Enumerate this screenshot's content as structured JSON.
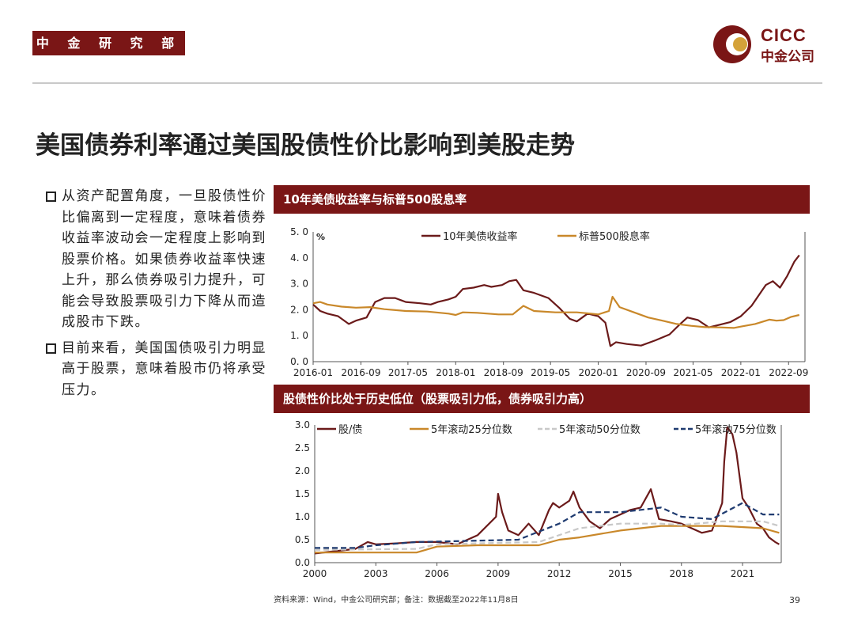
{
  "header": {
    "department": "中 金 研 究 部",
    "logo_en": "CICC",
    "logo_cn": "中金公司"
  },
  "title": "美国债券利率通过美国股债性价比影响到美股走势",
  "bullets": [
    {
      "text": "从资产配置角度，一旦股债性价比偏离到一定程度，意味着债券收益率波动会一定程度上影响到股票价格。如果债券收益率快速上升，那么债券吸引力提升，可能会导致股票吸引力下降从而造成股市下跌。"
    },
    {
      "text": "目前来看，美国国债吸引力明显高于股票，意味着股市仍将承受压力。"
    }
  ],
  "footer": {
    "source": "资料来源：Wind，中金公司研究部；备注：数据截至2022年11月8日",
    "page": "39"
  },
  "colors": {
    "brand": "#7a1616",
    "line_dark": "#6b1a1a",
    "line_gold": "#c9882a",
    "line_gray": "#c8c8c8",
    "line_navy": "#1f3b70"
  },
  "chart_data": [
    {
      "type": "line",
      "title": "10年美债收益率与标普500股息率",
      "ylabel": "%",
      "ylim": [
        0,
        5
      ],
      "yticks": [
        "0.0",
        "1.0",
        "2.0",
        "3.0",
        "4.0",
        "5.0"
      ],
      "xlim": [
        2016.0,
        2022.9
      ],
      "xticks": [
        {
          "x": 2016.0,
          "label": "2016-01"
        },
        {
          "x": 2016.67,
          "label": "2016-09"
        },
        {
          "x": 2017.33,
          "label": "2017-05"
        },
        {
          "x": 2018.0,
          "label": "2018-01"
        },
        {
          "x": 2018.67,
          "label": "2018-09"
        },
        {
          "x": 2019.33,
          "label": "2019-05"
        },
        {
          "x": 2020.0,
          "label": "2020-01"
        },
        {
          "x": 2020.67,
          "label": "2020-09"
        },
        {
          "x": 2021.33,
          "label": "2021-05"
        },
        {
          "x": 2022.0,
          "label": "2022-01"
        },
        {
          "x": 2022.67,
          "label": "2022-09"
        }
      ],
      "legend_position": "top",
      "series": [
        {
          "name": "10年美债收益率",
          "color": "#6b1a1a",
          "points": [
            [
              2016.0,
              2.2
            ],
            [
              2016.1,
              1.95
            ],
            [
              2016.2,
              1.85
            ],
            [
              2016.35,
              1.75
            ],
            [
              2016.5,
              1.45
            ],
            [
              2016.6,
              1.58
            ],
            [
              2016.75,
              1.7
            ],
            [
              2016.87,
              2.3
            ],
            [
              2017.0,
              2.45
            ],
            [
              2017.15,
              2.45
            ],
            [
              2017.3,
              2.3
            ],
            [
              2017.5,
              2.25
            ],
            [
              2017.65,
              2.2
            ],
            [
              2017.75,
              2.3
            ],
            [
              2017.9,
              2.4
            ],
            [
              2018.0,
              2.5
            ],
            [
              2018.1,
              2.8
            ],
            [
              2018.25,
              2.85
            ],
            [
              2018.4,
              2.95
            ],
            [
              2018.5,
              2.88
            ],
            [
              2018.65,
              2.95
            ],
            [
              2018.75,
              3.1
            ],
            [
              2018.85,
              3.15
            ],
            [
              2018.95,
              2.75
            ],
            [
              2019.1,
              2.65
            ],
            [
              2019.3,
              2.45
            ],
            [
              2019.45,
              2.08
            ],
            [
              2019.6,
              1.65
            ],
            [
              2019.7,
              1.55
            ],
            [
              2019.85,
              1.85
            ],
            [
              2020.0,
              1.75
            ],
            [
              2020.1,
              1.5
            ],
            [
              2020.17,
              0.6
            ],
            [
              2020.25,
              0.75
            ],
            [
              2020.4,
              0.68
            ],
            [
              2020.6,
              0.62
            ],
            [
              2020.8,
              0.82
            ],
            [
              2021.0,
              1.05
            ],
            [
              2021.15,
              1.45
            ],
            [
              2021.25,
              1.7
            ],
            [
              2021.4,
              1.6
            ],
            [
              2021.55,
              1.32
            ],
            [
              2021.7,
              1.42
            ],
            [
              2021.85,
              1.52
            ],
            [
              2022.0,
              1.75
            ],
            [
              2022.15,
              2.15
            ],
            [
              2022.25,
              2.55
            ],
            [
              2022.35,
              2.95
            ],
            [
              2022.45,
              3.1
            ],
            [
              2022.55,
              2.85
            ],
            [
              2022.65,
              3.3
            ],
            [
              2022.75,
              3.85
            ],
            [
              2022.82,
              4.1
            ]
          ]
        },
        {
          "name": "标普500股息率",
          "color": "#c9882a",
          "points": [
            [
              2016.0,
              2.25
            ],
            [
              2016.1,
              2.3
            ],
            [
              2016.2,
              2.2
            ],
            [
              2016.4,
              2.12
            ],
            [
              2016.6,
              2.08
            ],
            [
              2016.8,
              2.1
            ],
            [
              2017.0,
              2.02
            ],
            [
              2017.3,
              1.95
            ],
            [
              2017.6,
              1.93
            ],
            [
              2017.9,
              1.85
            ],
            [
              2018.0,
              1.8
            ],
            [
              2018.1,
              1.9
            ],
            [
              2018.3,
              1.88
            ],
            [
              2018.6,
              1.82
            ],
            [
              2018.8,
              1.82
            ],
            [
              2018.95,
              2.15
            ],
            [
              2019.1,
              1.95
            ],
            [
              2019.4,
              1.9
            ],
            [
              2019.7,
              1.9
            ],
            [
              2019.9,
              1.85
            ],
            [
              2020.0,
              1.82
            ],
            [
              2020.15,
              1.95
            ],
            [
              2020.2,
              2.5
            ],
            [
              2020.3,
              2.1
            ],
            [
              2020.5,
              1.9
            ],
            [
              2020.7,
              1.7
            ],
            [
              2020.9,
              1.58
            ],
            [
              2021.1,
              1.45
            ],
            [
              2021.3,
              1.38
            ],
            [
              2021.5,
              1.33
            ],
            [
              2021.7,
              1.32
            ],
            [
              2021.9,
              1.3
            ],
            [
              2022.0,
              1.35
            ],
            [
              2022.2,
              1.45
            ],
            [
              2022.4,
              1.62
            ],
            [
              2022.5,
              1.58
            ],
            [
              2022.6,
              1.6
            ],
            [
              2022.7,
              1.72
            ],
            [
              2022.82,
              1.8
            ]
          ]
        }
      ]
    },
    {
      "type": "line",
      "title": "股债性价比处于历史低位（股票吸引力低，债券吸引力高）",
      "ylim": [
        0,
        3
      ],
      "yticks": [
        "0.0",
        "0.5",
        "1.0",
        "1.5",
        "2.0",
        "2.5",
        "3.0"
      ],
      "xlim": [
        2000,
        2022.9
      ],
      "xticks": [
        {
          "x": 2000,
          "label": "2000"
        },
        {
          "x": 2003,
          "label": "2003"
        },
        {
          "x": 2006,
          "label": "2006"
        },
        {
          "x": 2009,
          "label": "2009"
        },
        {
          "x": 2012,
          "label": "2012"
        },
        {
          "x": 2015,
          "label": "2015"
        },
        {
          "x": 2018,
          "label": "2018"
        },
        {
          "x": 2021,
          "label": "2021"
        }
      ],
      "legend_position": "top",
      "series": [
        {
          "name": "股/债",
          "color": "#6b1a1a",
          "style": "solid",
          "points": [
            [
              2000,
              0.2
            ],
            [
              2001,
              0.25
            ],
            [
              2002,
              0.3
            ],
            [
              2002.6,
              0.45
            ],
            [
              2003,
              0.4
            ],
            [
              2004,
              0.42
            ],
            [
              2005,
              0.45
            ],
            [
              2006,
              0.45
            ],
            [
              2007,
              0.4
            ],
            [
              2008,
              0.6
            ],
            [
              2008.9,
              1.0
            ],
            [
              2009.0,
              1.5
            ],
            [
              2009.2,
              1.1
            ],
            [
              2009.5,
              0.7
            ],
            [
              2010,
              0.6
            ],
            [
              2010.5,
              0.85
            ],
            [
              2011,
              0.6
            ],
            [
              2011.5,
              1.15
            ],
            [
              2011.7,
              1.3
            ],
            [
              2012,
              1.2
            ],
            [
              2012.5,
              1.35
            ],
            [
              2012.7,
              1.55
            ],
            [
              2013,
              1.2
            ],
            [
              2013.5,
              0.9
            ],
            [
              2014,
              0.75
            ],
            [
              2014.5,
              0.95
            ],
            [
              2015,
              1.05
            ],
            [
              2015.5,
              1.15
            ],
            [
              2016,
              1.2
            ],
            [
              2016.5,
              1.6
            ],
            [
              2016.9,
              0.95
            ],
            [
              2017.5,
              0.9
            ],
            [
              2018,
              0.85
            ],
            [
              2018.5,
              0.75
            ],
            [
              2019,
              0.65
            ],
            [
              2019.5,
              0.7
            ],
            [
              2020.0,
              1.3
            ],
            [
              2020.1,
              2.2
            ],
            [
              2020.25,
              2.95
            ],
            [
              2020.5,
              2.8
            ],
            [
              2020.7,
              2.4
            ],
            [
              2021,
              1.4
            ],
            [
              2021.3,
              1.2
            ],
            [
              2021.7,
              0.85
            ],
            [
              2022,
              0.75
            ],
            [
              2022.3,
              0.55
            ],
            [
              2022.6,
              0.45
            ],
            [
              2022.8,
              0.4
            ]
          ]
        },
        {
          "name": "5年滚动25分位数",
          "color": "#c9882a",
          "style": "solid",
          "points": [
            [
              2000,
              0.22
            ],
            [
              2005,
              0.22
            ],
            [
              2006,
              0.35
            ],
            [
              2008,
              0.38
            ],
            [
              2011,
              0.38
            ],
            [
              2012,
              0.5
            ],
            [
              2013,
              0.55
            ],
            [
              2015,
              0.7
            ],
            [
              2016,
              0.75
            ],
            [
              2017,
              0.8
            ],
            [
              2020,
              0.8
            ],
            [
              2022,
              0.75
            ],
            [
              2022.8,
              0.65
            ]
          ]
        },
        {
          "name": "5年滚动50分位数",
          "color": "#c8c8c8",
          "style": "dash",
          "points": [
            [
              2000,
              0.28
            ],
            [
              2005,
              0.3
            ],
            [
              2006,
              0.4
            ],
            [
              2008,
              0.42
            ],
            [
              2011,
              0.45
            ],
            [
              2012,
              0.6
            ],
            [
              2013,
              0.75
            ],
            [
              2015,
              0.85
            ],
            [
              2017,
              0.85
            ],
            [
              2018,
              0.82
            ],
            [
              2020,
              0.9
            ],
            [
              2022,
              0.9
            ],
            [
              2022.8,
              0.8
            ]
          ]
        },
        {
          "name": "5年滚动75分位数",
          "color": "#1f3b70",
          "style": "dash",
          "points": [
            [
              2000,
              0.32
            ],
            [
              2002,
              0.32
            ],
            [
              2003,
              0.38
            ],
            [
              2005,
              0.45
            ],
            [
              2008,
              0.48
            ],
            [
              2010,
              0.5
            ],
            [
              2012,
              0.85
            ],
            [
              2013,
              1.1
            ],
            [
              2015,
              1.1
            ],
            [
              2017,
              1.2
            ],
            [
              2018,
              1.0
            ],
            [
              2019.5,
              0.95
            ],
            [
              2021,
              1.3
            ],
            [
              2022,
              1.05
            ],
            [
              2022.8,
              1.05
            ]
          ]
        }
      ]
    }
  ]
}
